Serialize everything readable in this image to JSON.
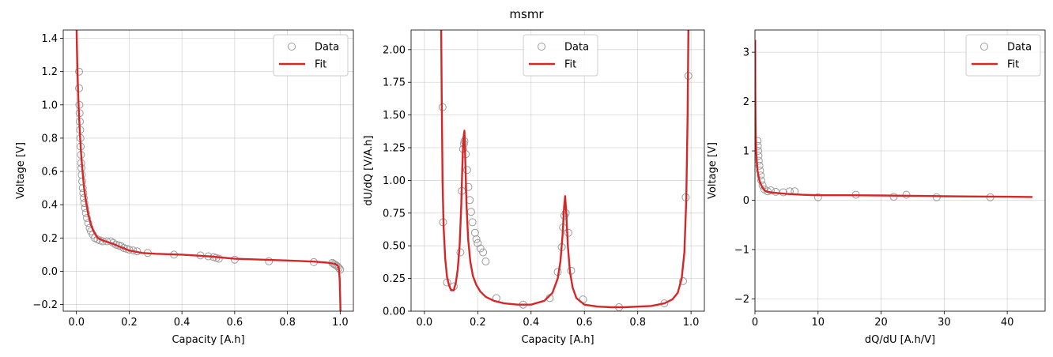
{
  "figure": {
    "suptitle": "msmr",
    "colors": {
      "data_marker_edge": "#9a9a9a",
      "fit_line": "#d62728",
      "grid": "#b0b0b0"
    },
    "legend_labels": {
      "data": "Data",
      "fit": "Fit"
    }
  },
  "chart_data": [
    {
      "type": "scatter",
      "title": "",
      "xlabel": "Capacity [A.h]",
      "ylabel": "Voltage [V]",
      "xlim": [
        -0.05,
        1.05
      ],
      "ylim": [
        -0.24,
        1.45
      ],
      "xticks": [
        0.0,
        0.2,
        0.4,
        0.6,
        0.8,
        1.0
      ],
      "xtick_labels": [
        "0.0",
        "0.2",
        "0.4",
        "0.6",
        "0.8",
        "1.0"
      ],
      "yticks": [
        -0.2,
        0.0,
        0.2,
        0.4,
        0.6,
        0.8,
        1.0,
        1.2,
        1.4
      ],
      "ytick_labels": [
        "−0.2",
        "0.0",
        "0.2",
        "0.4",
        "0.6",
        "0.8",
        "1.0",
        "1.2",
        "1.4"
      ],
      "grid": true,
      "legend_position": "upper-right",
      "series": [
        {
          "name": "Data",
          "style": "open-circle",
          "x": [
            0.01,
            0.01,
            0.011,
            0.012,
            0.013,
            0.014,
            0.015,
            0.016,
            0.017,
            0.018,
            0.019,
            0.02,
            0.022,
            0.024,
            0.026,
            0.028,
            0.03,
            0.033,
            0.036,
            0.04,
            0.045,
            0.05,
            0.055,
            0.062,
            0.07,
            0.08,
            0.09,
            0.1,
            0.115,
            0.13,
            0.14,
            0.15,
            0.16,
            0.17,
            0.18,
            0.19,
            0.2,
            0.215,
            0.23,
            0.27,
            0.37,
            0.47,
            0.5,
            0.52,
            0.53,
            0.54,
            0.6,
            0.73,
            0.9,
            0.97,
            0.975,
            0.98,
            0.985,
            0.99,
            0.995,
            1.0
          ],
          "y": [
            1.2,
            1.1,
            1.0,
            0.95,
            0.9,
            0.85,
            0.8,
            0.75,
            0.7,
            0.65,
            0.62,
            0.58,
            0.54,
            0.5,
            0.47,
            0.44,
            0.41,
            0.38,
            0.35,
            0.32,
            0.29,
            0.26,
            0.24,
            0.22,
            0.2,
            0.19,
            0.185,
            0.18,
            0.18,
            0.18,
            0.17,
            0.16,
            0.155,
            0.15,
            0.14,
            0.135,
            0.13,
            0.125,
            0.12,
            0.11,
            0.1,
            0.095,
            0.09,
            0.085,
            0.08,
            0.075,
            0.07,
            0.06,
            0.055,
            0.05,
            0.045,
            0.04,
            0.035,
            0.03,
            0.02,
            0.01
          ]
        },
        {
          "name": "Fit",
          "style": "line",
          "x": [
            0.0008,
            0.002,
            0.004,
            0.007,
            0.01,
            0.014,
            0.018,
            0.023,
            0.029,
            0.036,
            0.045,
            0.055,
            0.065,
            0.08,
            0.1,
            0.13,
            0.16,
            0.2,
            0.25,
            0.3,
            0.4,
            0.5,
            0.6,
            0.7,
            0.8,
            0.9,
            0.95,
            0.98,
            0.99,
            0.995,
            0.998,
            1.0,
            1.001
          ],
          "y": [
            1.45,
            1.35,
            1.2,
            1.05,
            0.93,
            0.8,
            0.7,
            0.6,
            0.5,
            0.42,
            0.34,
            0.28,
            0.24,
            0.2,
            0.185,
            0.17,
            0.15,
            0.125,
            0.11,
            0.105,
            0.1,
            0.09,
            0.075,
            0.07,
            0.065,
            0.058,
            0.052,
            0.045,
            0.035,
            0.02,
            -0.05,
            -0.16,
            -0.24
          ]
        }
      ]
    },
    {
      "type": "scatter",
      "title": "",
      "xlabel": "Capacity [A.h]",
      "ylabel": "dU/dQ [V/A.h]",
      "xlim": [
        -0.05,
        1.05
      ],
      "ylim": [
        0.0,
        2.15
      ],
      "xticks": [
        0.0,
        0.2,
        0.4,
        0.6,
        0.8,
        1.0
      ],
      "xtick_labels": [
        "0.0",
        "0.2",
        "0.4",
        "0.6",
        "0.8",
        "1.0"
      ],
      "yticks": [
        0.0,
        0.25,
        0.5,
        0.75,
        1.0,
        1.25,
        1.5,
        1.75,
        2.0
      ],
      "ytick_labels": [
        "0.00",
        "0.25",
        "0.50",
        "0.75",
        "1.00",
        "1.25",
        "1.50",
        "1.75",
        "2.00"
      ],
      "grid": true,
      "legend_position": "upper-center",
      "series": [
        {
          "name": "Data",
          "style": "open-circle",
          "x": [
            0.068,
            0.07,
            0.085,
            0.11,
            0.135,
            0.14,
            0.145,
            0.148,
            0.15,
            0.155,
            0.16,
            0.165,
            0.17,
            0.175,
            0.18,
            0.19,
            0.195,
            0.2,
            0.21,
            0.22,
            0.23,
            0.27,
            0.37,
            0.47,
            0.5,
            0.515,
            0.52,
            0.525,
            0.53,
            0.54,
            0.55,
            0.595,
            0.73,
            0.9,
            0.97,
            0.98,
            0.99
          ],
          "y": [
            1.56,
            0.68,
            0.22,
            0.19,
            0.45,
            0.92,
            1.24,
            1.28,
            1.3,
            1.2,
            1.08,
            0.95,
            0.85,
            0.76,
            0.68,
            0.6,
            0.55,
            0.52,
            0.48,
            0.45,
            0.38,
            0.1,
            0.05,
            0.1,
            0.3,
            0.49,
            0.64,
            0.73,
            0.75,
            0.6,
            0.31,
            0.09,
            0.03,
            0.06,
            0.23,
            0.87,
            1.8
          ]
        },
        {
          "name": "Fit",
          "style": "line",
          "x": [
            0.063,
            0.065,
            0.068,
            0.072,
            0.078,
            0.085,
            0.092,
            0.1,
            0.11,
            0.118,
            0.125,
            0.132,
            0.138,
            0.142,
            0.146,
            0.15,
            0.154,
            0.158,
            0.164,
            0.172,
            0.182,
            0.195,
            0.21,
            0.23,
            0.26,
            0.3,
            0.35,
            0.4,
            0.45,
            0.48,
            0.5,
            0.51,
            0.518,
            0.524,
            0.528,
            0.532,
            0.538,
            0.546,
            0.556,
            0.57,
            0.6,
            0.65,
            0.7,
            0.75,
            0.8,
            0.85,
            0.9,
            0.93,
            0.95,
            0.965,
            0.975,
            0.982,
            0.987,
            0.99
          ],
          "y": [
            2.15,
            1.6,
            1.0,
            0.65,
            0.4,
            0.26,
            0.2,
            0.16,
            0.16,
            0.22,
            0.32,
            0.5,
            0.8,
            1.1,
            1.32,
            1.38,
            1.1,
            0.8,
            0.55,
            0.38,
            0.27,
            0.2,
            0.15,
            0.11,
            0.08,
            0.06,
            0.05,
            0.05,
            0.08,
            0.14,
            0.25,
            0.38,
            0.58,
            0.8,
            0.88,
            0.75,
            0.5,
            0.3,
            0.18,
            0.1,
            0.05,
            0.035,
            0.03,
            0.03,
            0.035,
            0.04,
            0.06,
            0.09,
            0.14,
            0.25,
            0.45,
            0.85,
            1.5,
            2.15
          ]
        }
      ]
    },
    {
      "type": "scatter",
      "title": "",
      "xlabel": "dQ/dU [A.h/V]",
      "ylabel": "Voltage [V]",
      "xlim": [
        0,
        46
      ],
      "ylim": [
        -2.25,
        3.45
      ],
      "xticks": [
        0,
        10,
        20,
        30,
        40
      ],
      "xtick_labels": [
        "0",
        "10",
        "20",
        "30",
        "40"
      ],
      "yticks": [
        -2,
        -1,
        0,
        1,
        2,
        3
      ],
      "ytick_labels": [
        "−2",
        "−1",
        "0",
        "1",
        "2",
        "3"
      ],
      "grid": true,
      "legend_position": "upper-right",
      "series": [
        {
          "name": "Data",
          "style": "open-circle",
          "x": [
            0.4,
            0.45,
            0.5,
            0.55,
            0.6,
            0.7,
            0.8,
            0.9,
            1.0,
            1.2,
            1.5,
            2.0,
            2.5,
            3.3,
            4.5,
            5.5,
            6.3,
            10.0,
            16.0,
            22.0,
            24.0,
            28.8,
            37.3
          ],
          "y": [
            1.2,
            1.1,
            1.0,
            0.9,
            0.8,
            0.7,
            0.6,
            0.5,
            0.4,
            0.3,
            0.22,
            0.18,
            0.2,
            0.17,
            0.16,
            0.18,
            0.18,
            0.06,
            0.11,
            0.07,
            0.11,
            0.06,
            0.06
          ]
        },
        {
          "name": "Fit",
          "style": "line",
          "x": [
            0.02,
            0.05,
            0.1,
            0.2,
            0.4,
            0.7,
            1.0,
            1.5,
            2.0,
            3.0,
            5.0,
            6.3,
            7.5,
            10.0,
            15.0,
            20.0,
            25.0,
            28.0,
            30.0,
            35.0,
            40.0,
            44.0
          ],
          "y": [
            3.25,
            2.2,
            1.4,
            0.95,
            0.6,
            0.4,
            0.3,
            0.2,
            0.17,
            0.15,
            0.13,
            0.12,
            0.11,
            0.1,
            0.1,
            0.095,
            0.09,
            0.085,
            0.08,
            0.075,
            0.07,
            0.065
          ]
        }
      ]
    }
  ]
}
